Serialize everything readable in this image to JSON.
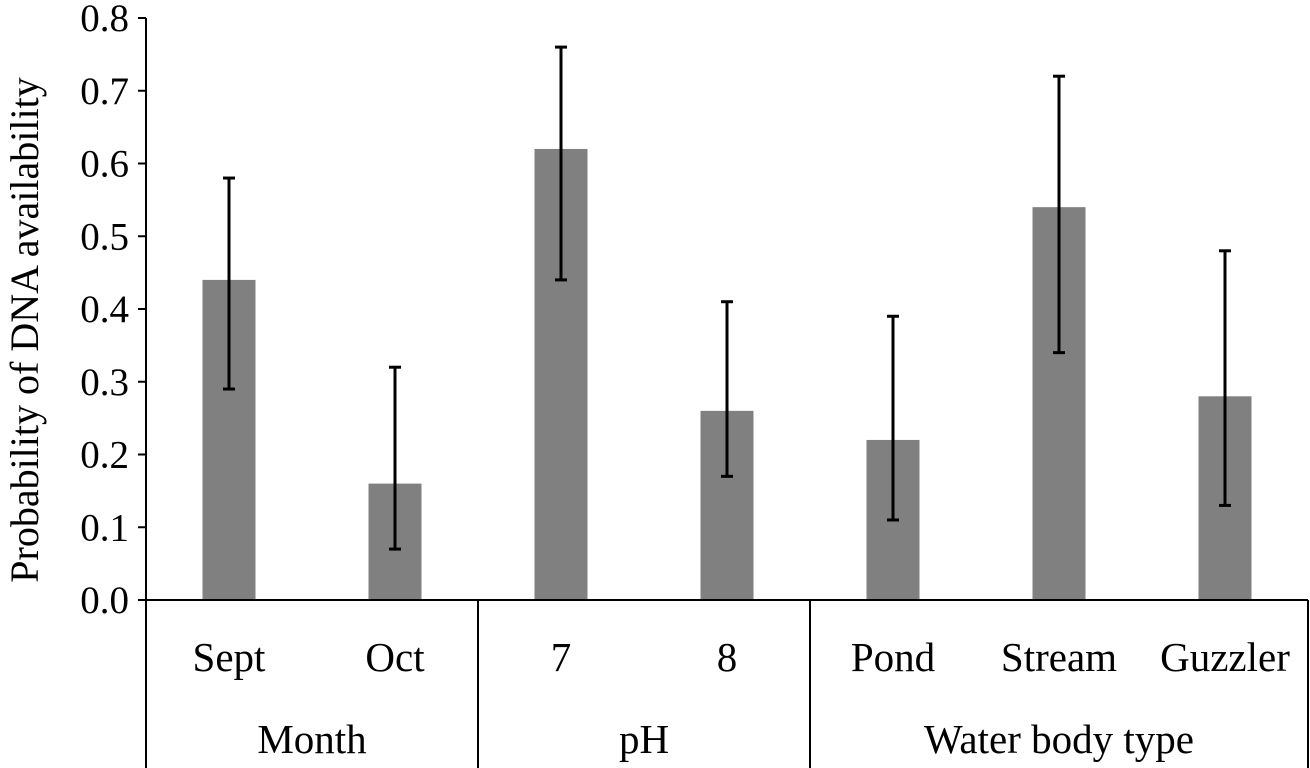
{
  "chart_data": {
    "type": "bar",
    "ylabel": "Probability of DNA availability",
    "ylim": [
      0,
      0.8
    ],
    "yticks": [
      "0.0",
      "0.1",
      "0.2",
      "0.3",
      "0.4",
      "0.5",
      "0.6",
      "0.7",
      "0.8"
    ],
    "grid": false,
    "legend": "none",
    "bar_color": "#808080",
    "error_bar_color": "#000000",
    "groups": [
      {
        "name": "Month",
        "categories": [
          "Sept",
          "Oct"
        ]
      },
      {
        "name": "pH",
        "categories": [
          "7",
          "8"
        ]
      },
      {
        "name": "Water body  type",
        "categories": [
          "Pond",
          "Stream",
          "Guzzler"
        ]
      }
    ],
    "categories": [
      "Sept",
      "Oct",
      "7",
      "8",
      "Pond",
      "Stream",
      "Guzzler"
    ],
    "values": [
      0.44,
      0.16,
      0.62,
      0.26,
      0.22,
      0.54,
      0.28
    ],
    "error_low": [
      0.29,
      0.07,
      0.44,
      0.17,
      0.11,
      0.34,
      0.13
    ],
    "error_high": [
      0.58,
      0.32,
      0.76,
      0.41,
      0.39,
      0.72,
      0.48
    ]
  }
}
